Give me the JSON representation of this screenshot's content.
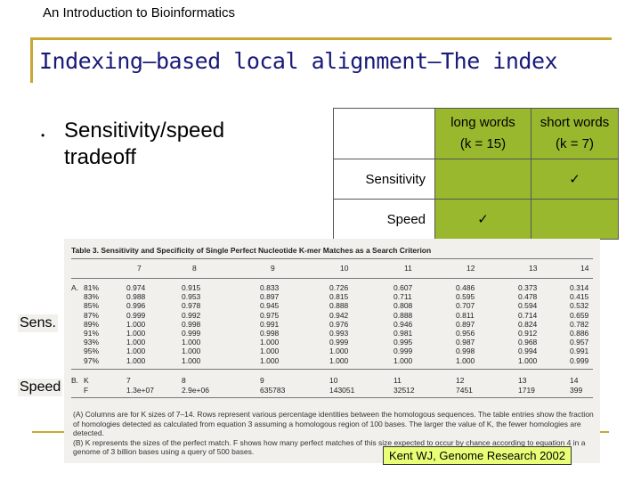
{
  "header": "An Introduction to Bioinformatics",
  "title": "Indexing—based local alignment—The index",
  "bullet": {
    "symbol": "•",
    "text": "Sensitivity/speed tradeoff"
  },
  "comparison": {
    "col1_line1": "long words",
    "col1_line2": "(k = 15)",
    "col2_line1": "short words",
    "col2_line2": "(k = 7)",
    "row1_label": "Sensitivity",
    "row2_label": "Speed",
    "check": "✓",
    "colors": {
      "cell": "#9ab82e"
    }
  },
  "figure": {
    "title": "Table 3.   Sensitivity and Specificity of Single Perfect Nucleotide K-mer Matches as a Search Criterion",
    "k_headers": [
      "7",
      "8",
      "9",
      "10",
      "11",
      "12",
      "13",
      "14"
    ],
    "rows_a": [
      [
        "A.",
        "81%",
        "0.974",
        "0.915",
        "0.833",
        "0.726",
        "0.607",
        "0.486",
        "0.373",
        "0.314"
      ],
      [
        "",
        "83%",
        "0.988",
        "0.953",
        "0.897",
        "0.815",
        "0.711",
        "0.595",
        "0.478",
        "0.415"
      ],
      [
        "",
        "85%",
        "0.996",
        "0.978",
        "0.945",
        "0.888",
        "0.808",
        "0.707",
        "0.594",
        "0.532"
      ],
      [
        "",
        "87%",
        "0.999",
        "0.992",
        "0.975",
        "0.942",
        "0.888",
        "0.811",
        "0.714",
        "0.659"
      ],
      [
        "",
        "89%",
        "1.000",
        "0.998",
        "0.991",
        "0.976",
        "0.946",
        "0.897",
        "0.824",
        "0.782"
      ],
      [
        "",
        "91%",
        "1.000",
        "0.999",
        "0.998",
        "0.993",
        "0.981",
        "0.956",
        "0.912",
        "0.886"
      ],
      [
        "",
        "93%",
        "1.000",
        "1.000",
        "1.000",
        "0.999",
        "0.995",
        "0.987",
        "0.968",
        "0.957"
      ],
      [
        "",
        "95%",
        "1.000",
        "1.000",
        "1.000",
        "1.000",
        "0.999",
        "0.998",
        "0.994",
        "0.991"
      ],
      [
        "",
        "97%",
        "1.000",
        "1.000",
        "1.000",
        "1.000",
        "1.000",
        "1.000",
        "1.000",
        "0.999"
      ]
    ],
    "rows_b": [
      [
        "B.",
        "K",
        "7",
        "8",
        "9",
        "10",
        "11",
        "12",
        "13",
        "14"
      ],
      [
        "",
        "F",
        "1.3e+07",
        "2.9e+06",
        "635783",
        "143051",
        "32512",
        "7451",
        "1719",
        "399"
      ]
    ],
    "note_a": "(A) Columns are for K sizes of 7–14. Rows represent various percentage identities between the homologous sequences. The table entries show the fraction of homologies detected as calculated from equation 3 assuming a homologous region of 100 bases. The larger the value of K, the fewer homologies are detected.",
    "note_b": "(B) K represents the sizes of the perfect match. F shows how many perfect matches of this size expected to occur by chance according to equation 4 in a genome of 3 billion bases using a query of 500 bases."
  },
  "side_labels": {
    "sens": "Sens.",
    "speed": "Speed"
  },
  "citation": "Kent WJ, Genome Research 2002"
}
